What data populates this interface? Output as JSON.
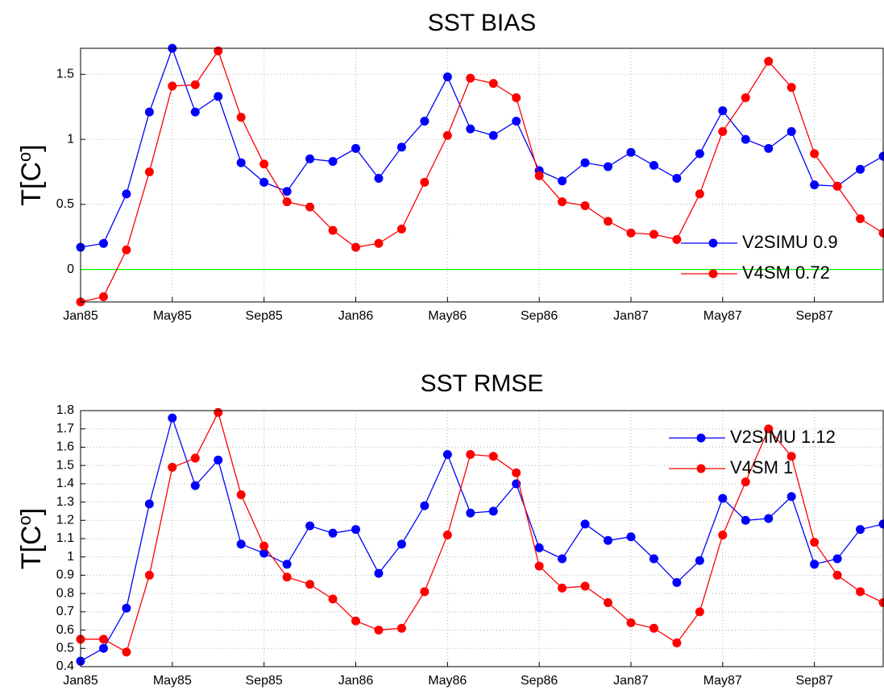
{
  "chart_data": [
    {
      "type": "line",
      "title": "SST BIAS",
      "ylabel": [
        "T[C",
        "o",
        "]"
      ],
      "categories": [
        "Jan85",
        null,
        null,
        null,
        "May85",
        null,
        null,
        null,
        "Sep85",
        null,
        null,
        null,
        "Jan86",
        null,
        null,
        null,
        "May86",
        null,
        null,
        null,
        "Sep86",
        null,
        null,
        null,
        "Jan87",
        null,
        null,
        null,
        "May87",
        null,
        null,
        null,
        "Sep87",
        null,
        null,
        null
      ],
      "series": [
        {
          "name": "V2SIMU 0.9",
          "color": "#0000ff",
          "values": [
            0.17,
            0.2,
            0.58,
            1.21,
            1.7,
            1.21,
            1.33,
            0.82,
            0.67,
            0.6,
            0.85,
            0.83,
            0.93,
            0.7,
            0.94,
            1.14,
            1.48,
            1.08,
            1.03,
            1.14,
            0.76,
            0.68,
            0.82,
            0.79,
            0.9,
            0.8,
            0.7,
            0.89,
            1.22,
            1.0,
            0.93,
            1.06,
            0.65,
            0.64,
            0.77,
            0.87
          ]
        },
        {
          "name": "V4SM 0.72",
          "color": "#ff0000",
          "values": [
            -0.25,
            -0.21,
            0.15,
            0.75,
            1.41,
            1.42,
            1.68,
            1.17,
            0.81,
            0.52,
            0.48,
            0.3,
            0.17,
            0.2,
            0.31,
            0.67,
            1.03,
            1.47,
            1.43,
            1.32,
            0.72,
            0.52,
            0.49,
            0.37,
            0.28,
            0.27,
            0.23,
            0.58,
            1.06,
            1.32,
            1.6,
            1.4,
            0.89,
            0.64,
            0.39,
            0.28
          ]
        }
      ],
      "ylim": [
        -0.25,
        1.7
      ],
      "yticks": [
        0,
        0.5,
        1,
        1.5
      ],
      "grid": true,
      "legend": "lower right",
      "reference_line": {
        "value": 0,
        "color": "#00ff00"
      }
    },
    {
      "type": "line",
      "title": "SST RMSE",
      "ylabel": [
        "T[C",
        "o",
        "]"
      ],
      "categories": [
        "Jan85",
        null,
        null,
        null,
        "May85",
        null,
        null,
        null,
        "Sep85",
        null,
        null,
        null,
        "Jan86",
        null,
        null,
        null,
        "May86",
        null,
        null,
        null,
        "Sep86",
        null,
        null,
        null,
        "Jan87",
        null,
        null,
        null,
        "May87",
        null,
        null,
        null,
        "Sep87",
        null,
        null,
        null
      ],
      "series": [
        {
          "name": "V2SIMU 1.12",
          "color": "#0000ff",
          "values": [
            0.43,
            0.5,
            0.72,
            1.29,
            1.76,
            1.39,
            1.53,
            1.07,
            1.02,
            0.96,
            1.17,
            1.13,
            1.15,
            0.91,
            1.07,
            1.28,
            1.56,
            1.24,
            1.25,
            1.4,
            1.05,
            0.99,
            1.18,
            1.09,
            1.11,
            0.99,
            0.86,
            0.98,
            1.32,
            1.2,
            1.21,
            1.33,
            0.96,
            0.99,
            1.15,
            1.18
          ]
        },
        {
          "name": "V4SM 1",
          "color": "#ff0000",
          "values": [
            0.55,
            0.55,
            0.48,
            0.9,
            1.49,
            1.54,
            1.79,
            1.34,
            1.06,
            0.89,
            0.85,
            0.77,
            0.65,
            0.6,
            0.61,
            0.81,
            1.12,
            1.56,
            1.55,
            1.46,
            0.95,
            0.83,
            0.84,
            0.75,
            0.64,
            0.61,
            0.53,
            0.7,
            1.12,
            1.41,
            1.7,
            1.55,
            1.08,
            0.9,
            0.81,
            0.75
          ]
        }
      ],
      "ylim": [
        0.4,
        1.8
      ],
      "yticks": [
        0.4,
        0.5,
        0.6,
        0.7,
        0.8,
        0.9,
        1,
        1.1,
        1.2,
        1.3,
        1.4,
        1.5,
        1.6,
        1.7,
        1.8
      ],
      "grid": true,
      "legend": "upper right"
    }
  ]
}
